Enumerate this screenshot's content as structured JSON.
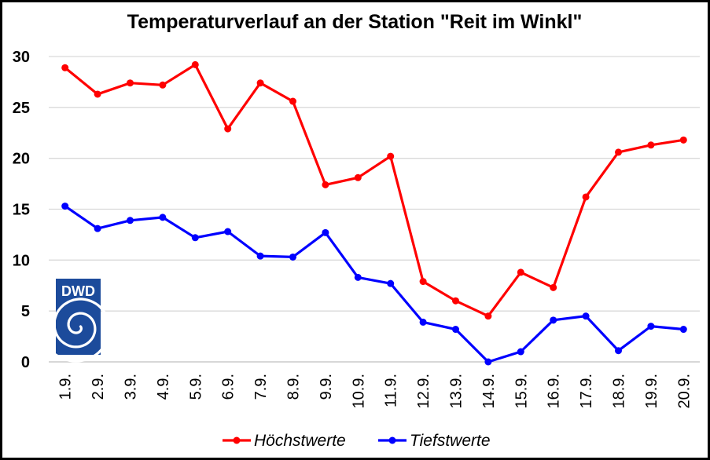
{
  "chart_data": {
    "type": "line",
    "title": "Temperaturverlauf an der Station \"Reit im Winkl\"",
    "categories": [
      "1.9.",
      "2.9.",
      "3.9.",
      "4.9.",
      "5.9.",
      "6.9.",
      "7.9.",
      "8.9.",
      "9.9.",
      "10.9.",
      "11.9.",
      "12.9.",
      "13.9.",
      "14.9.",
      "15.9.",
      "16.9.",
      "17.9.",
      "18.9.",
      "19.9.",
      "20.9."
    ],
    "series": [
      {
        "name": "Höchstwerte",
        "color": "#ff0000",
        "values": [
          28.9,
          26.3,
          27.4,
          27.2,
          29.2,
          22.9,
          27.4,
          25.6,
          17.4,
          18.1,
          20.2,
          7.9,
          6.0,
          4.5,
          8.8,
          7.3,
          16.2,
          20.6,
          21.3,
          21.8
        ]
      },
      {
        "name": "Tiefstwerte",
        "color": "#0000ff",
        "values": [
          15.3,
          13.1,
          13.9,
          14.2,
          12.2,
          12.8,
          10.4,
          10.3,
          12.7,
          8.3,
          7.7,
          3.9,
          3.2,
          0.0,
          1.0,
          4.1,
          4.5,
          1.1,
          3.5,
          3.2
        ]
      }
    ],
    "yticks": [
      0,
      5,
      10,
      15,
      20,
      25,
      30
    ],
    "ylim": [
      0,
      30
    ],
    "xlabel": "",
    "ylabel": "",
    "grid": true,
    "legend_position": "bottom",
    "logo_text": "DWD",
    "logo_color": "#1c4b9b"
  }
}
